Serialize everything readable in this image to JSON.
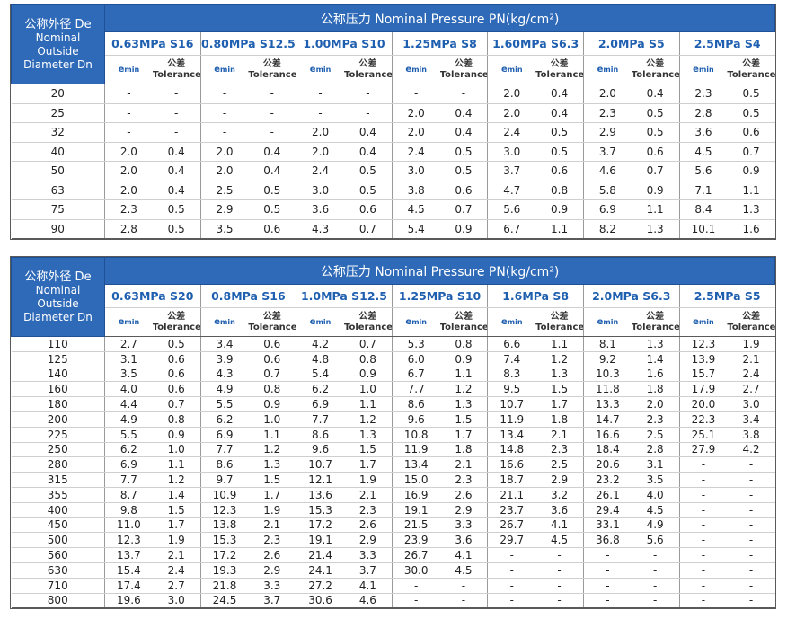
{
  "header": {
    "de_zh": "公称外径 De",
    "de_en_1": "Nominal",
    "de_en_2": "Outside",
    "de_en_3": "Diameter Dn",
    "pn_title": "公称压力 Nominal Pressure  PN(kg/cm²)",
    "emin_label": "e",
    "emin_sub": "min",
    "tol_zh": "公差",
    "tol_en": "Tolerance"
  },
  "table1": {
    "classes": [
      "0.63MPa S16",
      "0.80MPa S12.5",
      "1.00MPa S10",
      "1.25MPa S8",
      "1.60MPa S6.3",
      "2.0MPa S5",
      "2.5MPa S4"
    ],
    "rows": [
      {
        "dn": "20",
        "vals": [
          "-",
          "-",
          "-",
          "-",
          "-",
          "-",
          "-",
          "-",
          "2.0",
          "0.4",
          "2.0",
          "0.4",
          "2.3",
          "0.5"
        ]
      },
      {
        "dn": "25",
        "vals": [
          "-",
          "-",
          "-",
          "-",
          "-",
          "-",
          "2.0",
          "0.4",
          "2.0",
          "0.4",
          "2.3",
          "0.5",
          "2.8",
          "0.5"
        ]
      },
      {
        "dn": "32",
        "vals": [
          "-",
          "-",
          "-",
          "-",
          "2.0",
          "0.4",
          "2.0",
          "0.4",
          "2.4",
          "0.5",
          "2.9",
          "0.5",
          "3.6",
          "0.6"
        ]
      },
      {
        "dn": "40",
        "vals": [
          "2.0",
          "0.4",
          "2.0",
          "0.4",
          "2.0",
          "0.4",
          "2.4",
          "0.5",
          "3.0",
          "0.5",
          "3.7",
          "0.6",
          "4.5",
          "0.7"
        ]
      },
      {
        "dn": "50",
        "vals": [
          "2.0",
          "0.4",
          "2.0",
          "0.4",
          "2.4",
          "0.5",
          "3.0",
          "0.5",
          "3.7",
          "0.6",
          "4.6",
          "0.7",
          "5.6",
          "0.9"
        ]
      },
      {
        "dn": "63",
        "vals": [
          "2.0",
          "0.4",
          "2.5",
          "0.5",
          "3.0",
          "0.5",
          "3.8",
          "0.6",
          "4.7",
          "0.8",
          "5.8",
          "0.9",
          "7.1",
          "1.1"
        ]
      },
      {
        "dn": "75",
        "vals": [
          "2.3",
          "0.5",
          "2.9",
          "0.5",
          "3.6",
          "0.6",
          "4.5",
          "0.7",
          "5.6",
          "0.9",
          "6.9",
          "1.1",
          "8.4",
          "1.3"
        ]
      },
      {
        "dn": "90",
        "vals": [
          "2.8",
          "0.5",
          "3.5",
          "0.6",
          "4.3",
          "0.7",
          "5.4",
          "0.9",
          "6.7",
          "1.1",
          "8.2",
          "1.3",
          "10.1",
          "1.6"
        ]
      }
    ]
  },
  "table2": {
    "classes": [
      "0.63MPa S20",
      "0.8MPa  S16",
      "1.0MPa  S12.5",
      "1.25MPa  S10",
      "1.6MPa  S8",
      "2.0MPa  S6.3",
      "2.5MPa  S5"
    ],
    "rows": [
      {
        "dn": "110",
        "vals": [
          "2.7",
          "0.5",
          "3.4",
          "0.6",
          "4.2",
          "0.7",
          "5.3",
          "0.8",
          "6.6",
          "1.1",
          "8.1",
          "1.3",
          "12.3",
          "1.9"
        ]
      },
      {
        "dn": "125",
        "vals": [
          "3.1",
          "0.6",
          "3.9",
          "0.6",
          "4.8",
          "0.8",
          "6.0",
          "0.9",
          "7.4",
          "1.2",
          "9.2",
          "1.4",
          "13.9",
          "2.1"
        ]
      },
      {
        "dn": "140",
        "vals": [
          "3.5",
          "0.6",
          "4.3",
          "0.7",
          "5.4",
          "0.9",
          "6.7",
          "1.1",
          "8.3",
          "1.3",
          "10.3",
          "1.6",
          "15.7",
          "2.4"
        ]
      },
      {
        "dn": "160",
        "vals": [
          "4.0",
          "0.6",
          "4.9",
          "0.8",
          "6.2",
          "1.0",
          "7.7",
          "1.2",
          "9.5",
          "1.5",
          "11.8",
          "1.8",
          "17.9",
          "2.7"
        ]
      },
      {
        "dn": "180",
        "vals": [
          "4.4",
          "0.7",
          "5.5",
          "0.9",
          "6.9",
          "1.1",
          "8.6",
          "1.3",
          "10.7",
          "1.7",
          "13.3",
          "2.0",
          "20.0",
          "3.0"
        ]
      },
      {
        "dn": "200",
        "vals": [
          "4.9",
          "0.8",
          "6.2",
          "1.0",
          "7.7",
          "1.2",
          "9.6",
          "1.5",
          "11.9",
          "1.8",
          "14.7",
          "2.3",
          "22.3",
          "3.4"
        ]
      },
      {
        "dn": "225",
        "vals": [
          "5.5",
          "0.9",
          "6.9",
          "1.1",
          "8.6",
          "1.3",
          "10.8",
          "1.7",
          "13.4",
          "2.1",
          "16.6",
          "2.5",
          "25.1",
          "3.8"
        ]
      },
      {
        "dn": "250",
        "vals": [
          "6.2",
          "1.0",
          "7.7",
          "1.2",
          "9.6",
          "1.5",
          "11.9",
          "1.8",
          "14.8",
          "2.3",
          "18.4",
          "2.8",
          "27.9",
          "4.2"
        ]
      },
      {
        "dn": "280",
        "vals": [
          "6.9",
          "1.1",
          "8.6",
          "1.3",
          "10.7",
          "1.7",
          "13.4",
          "2.1",
          "16.6",
          "2.5",
          "20.6",
          "3.1",
          "-",
          "-"
        ]
      },
      {
        "dn": "315",
        "vals": [
          "7.7",
          "1.2",
          "9.7",
          "1.5",
          "12.1",
          "1.9",
          "15.0",
          "2.3",
          "18.7",
          "2.9",
          "23.2",
          "3.5",
          "-",
          "-"
        ]
      },
      {
        "dn": "355",
        "vals": [
          "8.7",
          "1.4",
          "10.9",
          "1.7",
          "13.6",
          "2.1",
          "16.9",
          "2.6",
          "21.1",
          "3.2",
          "26.1",
          "4.0",
          "-",
          "-"
        ]
      },
      {
        "dn": "400",
        "vals": [
          "9.8",
          "1.5",
          "12.3",
          "1.9",
          "15.3",
          "2.3",
          "19.1",
          "2.9",
          "23.7",
          "3.6",
          "29.4",
          "4.5",
          "-",
          "-"
        ]
      },
      {
        "dn": "450",
        "vals": [
          "11.0",
          "1.7",
          "13.8",
          "2.1",
          "17.2",
          "2.6",
          "21.5",
          "3.3",
          "26.7",
          "4.1",
          "33.1",
          "4.9",
          "-",
          "-"
        ]
      },
      {
        "dn": "500",
        "vals": [
          "12.3",
          "1.9",
          "15.3",
          "2.3",
          "19.1",
          "2.9",
          "23.9",
          "3.6",
          "29.7",
          "4.5",
          "36.8",
          "5.6",
          "-",
          "-"
        ]
      },
      {
        "dn": "560",
        "vals": [
          "13.7",
          "2.1",
          "17.2",
          "2.6",
          "21.4",
          "3.3",
          "26.7",
          "4.1",
          "-",
          "-",
          "-",
          "-",
          "-",
          "-"
        ]
      },
      {
        "dn": "630",
        "vals": [
          "15.4",
          "2.4",
          "19.3",
          "2.9",
          "24.1",
          "3.7",
          "30.0",
          "4.5",
          "-",
          "-",
          "-",
          "-",
          "-",
          "-"
        ]
      },
      {
        "dn": "710",
        "vals": [
          "17.4",
          "2.7",
          "21.8",
          "3.3",
          "27.2",
          "4.1",
          "-",
          "-",
          "-",
          "-",
          "-",
          "-",
          "-",
          "-"
        ]
      },
      {
        "dn": "800",
        "vals": [
          "19.6",
          "3.0",
          "24.5",
          "3.7",
          "30.6",
          "4.6",
          "-",
          "-",
          "-",
          "-",
          "-",
          "-",
          "-",
          "-"
        ]
      }
    ]
  }
}
